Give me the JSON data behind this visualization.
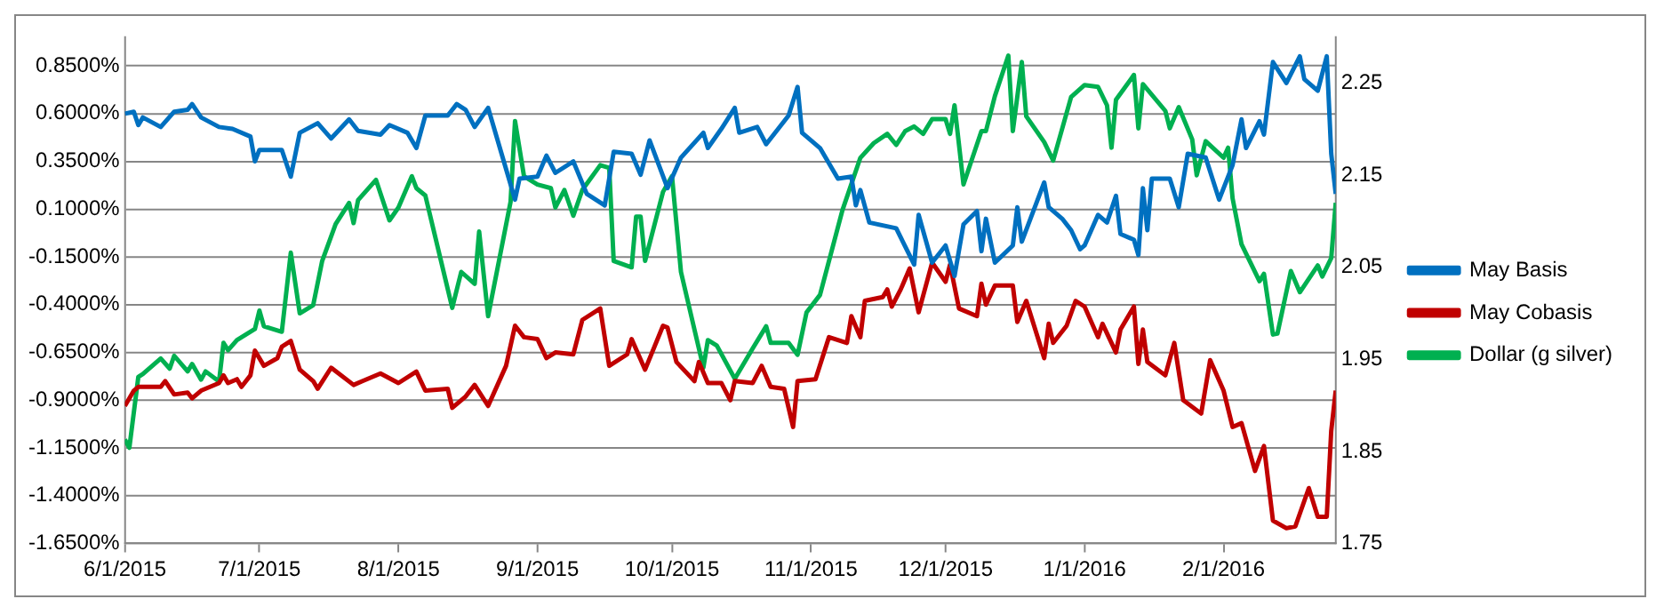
{
  "chart_data": {
    "type": "line",
    "xlim": [
      "2015-06-01",
      "2016-02-26"
    ],
    "xticks": [
      {
        "value": "2015-06-01",
        "label": "6/1/2015"
      },
      {
        "value": "2015-07-01",
        "label": "7/1/2015"
      },
      {
        "value": "2015-08-01",
        "label": "8/1/2015"
      },
      {
        "value": "2015-09-01",
        "label": "9/1/2015"
      },
      {
        "value": "2015-10-01",
        "label": "10/1/2015"
      },
      {
        "value": "2015-11-01",
        "label": "11/1/2015"
      },
      {
        "value": "2015-12-01",
        "label": "12/1/2015"
      },
      {
        "value": "2016-01-01",
        "label": "1/1/2016"
      },
      {
        "value": "2016-02-01",
        "label": "2/1/2016"
      }
    ],
    "ylim": [
      -1.65,
      1.0
    ],
    "yticks": [
      {
        "value": -1.65,
        "label": "-1.6500%"
      },
      {
        "value": -1.4,
        "label": "-1.4000%"
      },
      {
        "value": -1.15,
        "label": "-1.1500%"
      },
      {
        "value": -0.9,
        "label": "-0.9000%"
      },
      {
        "value": -0.65,
        "label": "-0.6500%"
      },
      {
        "value": -0.4,
        "label": "-0.4000%"
      },
      {
        "value": -0.15,
        "label": "-0.1500%"
      },
      {
        "value": 0.1,
        "label": "0.1000%"
      },
      {
        "value": 0.35,
        "label": "0.3500%"
      },
      {
        "value": 0.6,
        "label": "0.6000%"
      },
      {
        "value": 0.85,
        "label": "0.8500%"
      }
    ],
    "y2lim": [
      1.75,
      2.3
    ],
    "y2ticks": [
      {
        "value": 1.75,
        "label": "1.75"
      },
      {
        "value": 1.85,
        "label": "1.85"
      },
      {
        "value": 1.95,
        "label": "1.95"
      },
      {
        "value": 2.05,
        "label": "2.05"
      },
      {
        "value": 2.15,
        "label": "2.15"
      },
      {
        "value": 2.25,
        "label": "2.25"
      }
    ],
    "grid": "y",
    "legend": "right",
    "marker": "none",
    "line_style": "solid",
    "series": [
      {
        "name": "May Basis",
        "color": "#0070c0",
        "x": [
          "2015-06-01",
          "2015-06-03",
          "2015-06-04",
          "2015-06-05",
          "2015-06-09",
          "2015-06-12",
          "2015-06-15",
          "2015-06-16",
          "2015-06-18",
          "2015-06-22",
          "2015-06-25",
          "2015-06-29",
          "2015-06-30",
          "2015-07-01",
          "2015-07-06",
          "2015-07-08",
          "2015-07-10",
          "2015-07-14",
          "2015-07-17",
          "2015-07-21",
          "2015-07-23",
          "2015-07-28",
          "2015-07-30",
          "2015-08-03",
          "2015-08-05",
          "2015-08-07",
          "2015-08-12",
          "2015-08-14",
          "2015-08-16",
          "2015-08-18",
          "2015-08-21",
          "2015-08-24",
          "2015-08-27",
          "2015-08-28",
          "2015-09-01",
          "2015-09-03",
          "2015-09-05",
          "2015-09-09",
          "2015-09-12",
          "2015-09-16",
          "2015-09-18",
          "2015-09-22",
          "2015-09-24",
          "2015-09-26",
          "2015-09-30",
          "2015-10-03",
          "2015-10-08",
          "2015-10-09",
          "2015-10-12",
          "2015-10-15",
          "2015-10-16",
          "2015-10-20",
          "2015-10-22",
          "2015-10-27",
          "2015-10-29",
          "2015-10-30",
          "2015-11-03",
          "2015-11-07",
          "2015-11-10",
          "2015-11-11",
          "2015-11-12",
          "2015-11-14",
          "2015-11-20",
          "2015-11-24",
          "2015-11-25",
          "2015-11-28",
          "2015-12-01",
          "2015-12-03",
          "2015-12-05",
          "2015-12-08",
          "2015-12-09",
          "2015-12-10",
          "2015-12-12",
          "2015-12-16",
          "2015-12-17",
          "2015-12-18",
          "2015-12-23",
          "2015-12-24",
          "2015-12-27",
          "2015-12-29",
          "2015-12-31",
          "2016-01-01",
          "2016-01-04",
          "2016-01-06",
          "2016-01-08",
          "2016-01-09",
          "2016-01-12",
          "2016-01-13",
          "2016-01-14",
          "2016-01-15",
          "2016-01-16",
          "2016-01-20",
          "2016-01-22",
          "2016-01-24",
          "2016-01-28",
          "2016-01-31",
          "2016-02-03",
          "2016-02-05",
          "2016-02-06",
          "2016-02-09",
          "2016-02-10",
          "2016-02-12",
          "2016-02-15",
          "2016-02-18",
          "2016-02-19",
          "2016-02-22",
          "2016-02-24",
          "2016-02-25",
          "2016-02-26"
        ],
        "values": [
          0.6,
          0.61,
          0.54,
          0.58,
          0.53,
          0.61,
          0.62,
          0.65,
          0.58,
          0.53,
          0.52,
          0.48,
          0.35,
          0.41,
          0.41,
          0.27,
          0.5,
          0.55,
          0.47,
          0.57,
          0.51,
          0.49,
          0.54,
          0.5,
          0.42,
          0.59,
          0.59,
          0.65,
          0.62,
          0.53,
          0.63,
          0.39,
          0.15,
          0.26,
          0.27,
          0.38,
          0.29,
          0.35,
          0.18,
          0.12,
          0.4,
          0.39,
          0.28,
          0.46,
          0.21,
          0.37,
          0.5,
          0.42,
          0.52,
          0.63,
          0.5,
          0.53,
          0.44,
          0.59,
          0.74,
          0.5,
          0.42,
          0.26,
          0.27,
          0.12,
          0.2,
          0.03,
          0.0,
          -0.19,
          0.07,
          -0.18,
          -0.09,
          -0.25,
          0.02,
          0.09,
          -0.12,
          0.05,
          -0.18,
          -0.09,
          0.11,
          -0.07,
          0.24,
          0.11,
          0.05,
          -0.01,
          -0.11,
          -0.09,
          0.07,
          0.03,
          0.17,
          -0.03,
          -0.06,
          -0.14,
          0.21,
          -0.01,
          0.26,
          0.26,
          0.11,
          0.39,
          0.37,
          0.15,
          0.33,
          0.57,
          0.42,
          0.56,
          0.49,
          0.87,
          0.76,
          0.9,
          0.78,
          0.72,
          0.9,
          0.39,
          0.18
        ]
      },
      {
        "name": "May Cobasis",
        "color": "#c00000",
        "x": [
          "2015-06-01",
          "2015-06-03",
          "2015-06-04",
          "2015-06-09",
          "2015-06-10",
          "2015-06-12",
          "2015-06-15",
          "2015-06-16",
          "2015-06-18",
          "2015-06-22",
          "2015-06-23",
          "2015-06-24",
          "2015-06-26",
          "2015-06-27",
          "2015-06-29",
          "2015-06-30",
          "2015-07-02",
          "2015-07-05",
          "2015-07-06",
          "2015-07-08",
          "2015-07-10",
          "2015-07-13",
          "2015-07-14",
          "2015-07-17",
          "2015-07-22",
          "2015-07-24",
          "2015-07-28",
          "2015-08-01",
          "2015-08-05",
          "2015-08-06",
          "2015-08-07",
          "2015-08-12",
          "2015-08-13",
          "2015-08-16",
          "2015-08-18",
          "2015-08-21",
          "2015-08-25",
          "2015-08-27",
          "2015-08-29",
          "2015-09-01",
          "2015-09-03",
          "2015-09-05",
          "2015-09-09",
          "2015-09-11",
          "2015-09-15",
          "2015-09-17",
          "2015-09-21",
          "2015-09-22",
          "2015-09-25",
          "2015-09-29",
          "2015-09-30",
          "2015-10-02",
          "2015-10-06",
          "2015-10-07",
          "2015-10-09",
          "2015-10-12",
          "2015-10-14",
          "2015-10-15",
          "2015-10-19",
          "2015-10-21",
          "2015-10-23",
          "2015-10-26",
          "2015-10-28",
          "2015-10-29",
          "2015-11-02",
          "2015-11-05",
          "2015-11-09",
          "2015-11-10",
          "2015-11-12",
          "2015-11-13",
          "2015-11-17",
          "2015-11-18",
          "2015-11-19",
          "2015-11-21",
          "2015-11-23",
          "2015-11-25",
          "2015-11-28",
          "2015-12-01",
          "2015-12-02",
          "2015-12-04",
          "2015-12-08",
          "2015-12-09",
          "2015-12-10",
          "2015-12-12",
          "2015-12-16",
          "2015-12-17",
          "2015-12-19",
          "2015-12-23",
          "2015-12-24",
          "2015-12-25",
          "2015-12-28",
          "2015-12-30",
          "2016-01-01",
          "2016-01-04",
          "2016-01-05",
          "2016-01-08",
          "2016-01-09",
          "2016-01-12",
          "2016-01-13",
          "2016-01-14",
          "2016-01-15",
          "2016-01-19",
          "2016-01-21",
          "2016-01-23",
          "2016-01-27",
          "2016-01-29",
          "2016-02-01",
          "2016-02-03",
          "2016-02-05",
          "2016-02-08",
          "2016-02-10",
          "2016-02-12",
          "2016-02-15",
          "2016-02-17",
          "2016-02-20",
          "2016-02-22",
          "2016-02-24",
          "2016-02-25",
          "2016-02-26"
        ],
        "values": [
          -0.93,
          -0.85,
          -0.83,
          -0.83,
          -0.8,
          -0.87,
          -0.86,
          -0.89,
          -0.85,
          -0.81,
          -0.77,
          -0.81,
          -0.79,
          -0.83,
          -0.77,
          -0.64,
          -0.72,
          -0.68,
          -0.62,
          -0.59,
          -0.74,
          -0.8,
          -0.84,
          -0.73,
          -0.82,
          -0.8,
          -0.76,
          -0.81,
          -0.75,
          -0.8,
          -0.85,
          -0.84,
          -0.94,
          -0.88,
          -0.82,
          -0.93,
          -0.72,
          -0.51,
          -0.57,
          -0.58,
          -0.68,
          -0.65,
          -0.66,
          -0.48,
          -0.42,
          -0.72,
          -0.66,
          -0.58,
          -0.74,
          -0.51,
          -0.52,
          -0.7,
          -0.8,
          -0.7,
          -0.81,
          -0.81,
          -0.9,
          -0.8,
          -0.81,
          -0.72,
          -0.83,
          -0.84,
          -1.04,
          -0.8,
          -0.79,
          -0.57,
          -0.6,
          -0.46,
          -0.57,
          -0.38,
          -0.36,
          -0.32,
          -0.41,
          -0.32,
          -0.21,
          -0.44,
          -0.18,
          -0.28,
          -0.19,
          -0.42,
          -0.46,
          -0.29,
          -0.4,
          -0.3,
          -0.3,
          -0.49,
          -0.38,
          -0.68,
          -0.5,
          -0.6,
          -0.51,
          -0.38,
          -0.41,
          -0.57,
          -0.5,
          -0.65,
          -0.53,
          -0.41,
          -0.71,
          -0.53,
          -0.7,
          -0.77,
          -0.6,
          -0.9,
          -0.97,
          -0.69,
          -0.85,
          -1.04,
          -1.02,
          -1.27,
          -1.14,
          -1.53,
          -1.57,
          -1.56,
          -1.36,
          -1.51,
          -1.51,
          -1.06,
          -0.85
        ]
      },
      {
        "name": "Dollar (g silver)",
        "color": "#00b050",
        "axis": "y2",
        "x": [
          "2015-06-01",
          "2015-06-02",
          "2015-06-04",
          "2015-06-05",
          "2015-06-09",
          "2015-06-11",
          "2015-06-12",
          "2015-06-15",
          "2015-06-16",
          "2015-06-18",
          "2015-06-19",
          "2015-06-22",
          "2015-06-23",
          "2015-06-24",
          "2015-06-26",
          "2015-06-30",
          "2015-07-01",
          "2015-07-02",
          "2015-07-06",
          "2015-07-08",
          "2015-07-10",
          "2015-07-13",
          "2015-07-15",
          "2015-07-18",
          "2015-07-21",
          "2015-07-22",
          "2015-07-23",
          "2015-07-27",
          "2015-07-30",
          "2015-08-01",
          "2015-08-04",
          "2015-08-05",
          "2015-08-07",
          "2015-08-13",
          "2015-08-15",
          "2015-08-18",
          "2015-08-19",
          "2015-08-21",
          "2015-08-26",
          "2015-08-27",
          "2015-08-29",
          "2015-09-01",
          "2015-09-04",
          "2015-09-05",
          "2015-09-07",
          "2015-09-09",
          "2015-09-11",
          "2015-09-15",
          "2015-09-17",
          "2015-09-18",
          "2015-09-22",
          "2015-09-23",
          "2015-09-24",
          "2015-09-25",
          "2015-09-29",
          "2015-10-01",
          "2015-10-03",
          "2015-10-08",
          "2015-10-09",
          "2015-10-11",
          "2015-10-15",
          "2015-10-19",
          "2015-10-22",
          "2015-10-23",
          "2015-10-27",
          "2015-10-29",
          "2015-10-31",
          "2015-11-03",
          "2015-11-08",
          "2015-11-12",
          "2015-11-15",
          "2015-11-18",
          "2015-11-20",
          "2015-11-22",
          "2015-11-24",
          "2015-11-26",
          "2015-11-28",
          "2015-12-01",
          "2015-12-02",
          "2015-12-03",
          "2015-12-05",
          "2015-12-09",
          "2015-12-10",
          "2015-12-12",
          "2015-12-15",
          "2015-12-16",
          "2015-12-18",
          "2015-12-19",
          "2015-12-23",
          "2015-12-25",
          "2015-12-29",
          "2016-01-01",
          "2016-01-04",
          "2016-01-06",
          "2016-01-07",
          "2016-01-08",
          "2016-01-12",
          "2016-01-13",
          "2016-01-14",
          "2016-01-19",
          "2016-01-20",
          "2016-01-22",
          "2016-01-25",
          "2016-01-26",
          "2016-01-28",
          "2016-02-01",
          "2016-02-02",
          "2016-02-03",
          "2016-02-05",
          "2016-02-09",
          "2016-02-10",
          "2016-02-12",
          "2016-02-13",
          "2016-02-16",
          "2016-02-18",
          "2016-02-22",
          "2016-02-23",
          "2016-02-25",
          "2016-02-26"
        ],
        "values": [
          1.863,
          1.854,
          1.931,
          1.934,
          1.951,
          1.94,
          1.954,
          1.937,
          1.945,
          1.928,
          1.937,
          1.926,
          1.968,
          1.96,
          1.971,
          1.983,
          2.003,
          1.986,
          1.98,
          2.066,
          2.0,
          2.009,
          2.057,
          2.097,
          2.12,
          2.098,
          2.123,
          2.145,
          2.101,
          2.115,
          2.149,
          2.136,
          2.128,
          2.006,
          2.045,
          2.032,
          2.089,
          1.997,
          2.121,
          2.209,
          2.149,
          2.14,
          2.136,
          2.115,
          2.134,
          2.106,
          2.134,
          2.161,
          2.158,
          2.057,
          2.05,
          2.105,
          2.105,
          2.057,
          2.132,
          2.149,
          2.045,
          1.941,
          1.971,
          1.965,
          1.929,
          1.962,
          1.986,
          1.968,
          1.968,
          1.955,
          2.001,
          2.02,
          2.112,
          2.169,
          2.185,
          2.195,
          2.183,
          2.198,
          2.203,
          2.195,
          2.211,
          2.211,
          2.195,
          2.226,
          2.14,
          2.198,
          2.198,
          2.236,
          2.28,
          2.198,
          2.273,
          2.214,
          2.186,
          2.166,
          2.235,
          2.248,
          2.246,
          2.226,
          2.18,
          2.232,
          2.259,
          2.201,
          2.249,
          2.22,
          2.201,
          2.224,
          2.189,
          2.15,
          2.187,
          2.169,
          2.18,
          2.125,
          2.075,
          2.035,
          2.043,
          1.977,
          1.978,
          2.046,
          2.023,
          2.052,
          2.04,
          2.06,
          2.12
        ]
      }
    ]
  }
}
